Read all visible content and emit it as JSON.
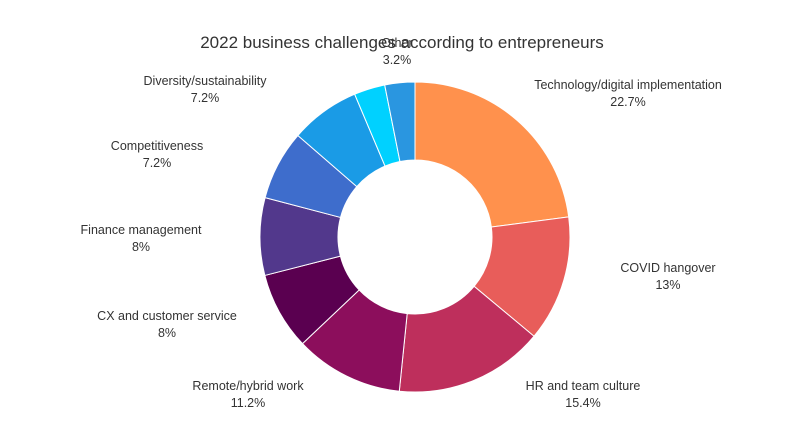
{
  "chart_data": {
    "type": "pie",
    "title": "2022 business challenges according to entrepreneurs",
    "donut": true,
    "legend": "none",
    "slices": [
      {
        "label": "Technology/digital implementation",
        "value": 22.7,
        "value_label": "22.7%",
        "color": "#FF914D"
      },
      {
        "label": "COVID hangover",
        "value": 13,
        "value_label": "13%",
        "color": "#E85D5A"
      },
      {
        "label": "HR and team culture",
        "value": 15.4,
        "value_label": "15.4%",
        "color": "#BE2F5C"
      },
      {
        "label": "Remote/hybrid work",
        "value": 11.2,
        "value_label": "11.2%",
        "color": "#8C0E5C"
      },
      {
        "label": "CX and customer service",
        "value": 8,
        "value_label": "8%",
        "color": "#5A0050"
      },
      {
        "label": "Finance management",
        "value": 8,
        "value_label": "8%",
        "color": "#52388C"
      },
      {
        "label": "Competitiveness",
        "value": 7.2,
        "value_label": "7.2%",
        "color": "#3E6DCC"
      },
      {
        "label": "Diversity/sustainability",
        "value": 7.2,
        "value_label": "7.2%",
        "color": "#1A9BE6"
      },
      {
        "label": "Other",
        "value": 3.2,
        "value_label": "3.2%",
        "color": "#00D1FF"
      },
      {
        "label": "",
        "value": 3.1,
        "value_label": "",
        "color": "#2A96E0"
      }
    ]
  }
}
